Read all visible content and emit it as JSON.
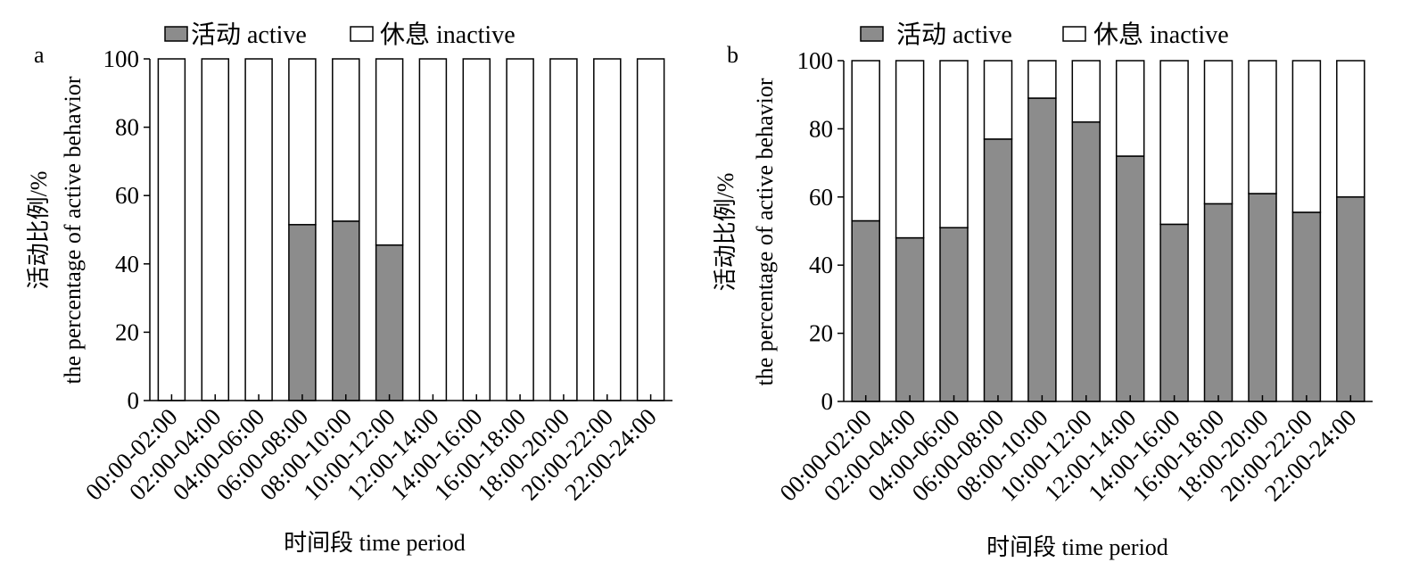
{
  "chart_data": [
    {
      "panel": "a",
      "type": "bar",
      "stacked": true,
      "categories": [
        "00:00-02:00",
        "02:00-04:00",
        "04:00-06:00",
        "06:00-08:00",
        "08:00-10:00",
        "10:00-12:00",
        "12:00-14:00",
        "14:00-16:00",
        "16:00-18:00",
        "18:00-20:00",
        "20:00-22:00",
        "22:00-24:00"
      ],
      "series": [
        {
          "name": "活动 active",
          "color": "#8c8c8c",
          "values": [
            0,
            0,
            0,
            51.5,
            52.5,
            45.5,
            0,
            0,
            0,
            0,
            0,
            0
          ]
        },
        {
          "name": "休息 inactive",
          "color": "#ffffff",
          "values": [
            100,
            100,
            100,
            48.5,
            47.5,
            54.5,
            100,
            100,
            100,
            100,
            100,
            100
          ]
        }
      ],
      "xlabel": "时间段 time period",
      "ylabel_line1": "活动比例/%",
      "ylabel_line2": "the percentage of active behavior",
      "ylim": [
        0,
        100
      ],
      "yticks": [
        0,
        20,
        40,
        60,
        80,
        100
      ],
      "legend_position": "top"
    },
    {
      "panel": "b",
      "type": "bar",
      "stacked": true,
      "categories": [
        "00:00-02:00",
        "02:00-04:00",
        "04:00-06:00",
        "06:00-08:00",
        "08:00-10:00",
        "10:00-12:00",
        "12:00-14:00",
        "14:00-16:00",
        "16:00-18:00",
        "18:00-20:00",
        "20:00-22:00",
        "22:00-24:00"
      ],
      "series": [
        {
          "name": "活动 active",
          "color": "#8c8c8c",
          "values": [
            53,
            48,
            51,
            77,
            89,
            82,
            72,
            52,
            58,
            61,
            55.5,
            60
          ]
        },
        {
          "name": "休息 inactive",
          "color": "#ffffff",
          "values": [
            47,
            52,
            49,
            23,
            11,
            18,
            28,
            48,
            42,
            39,
            44.5,
            40
          ]
        }
      ],
      "xlabel": "时间段 time period",
      "ylabel_line1": "活动比例/%",
      "ylabel_line2": "the percentage of active behavior",
      "ylim": [
        0,
        100
      ],
      "yticks": [
        0,
        20,
        40,
        60,
        80,
        100
      ],
      "legend_position": "top"
    }
  ]
}
